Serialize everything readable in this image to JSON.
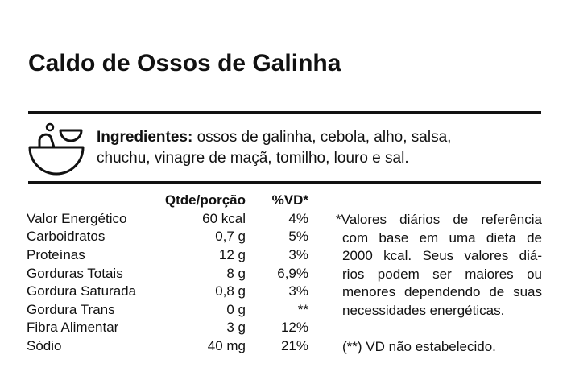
{
  "title": "Caldo de Ossos de Galinha",
  "ingredients": {
    "label": "Ingredientes:",
    "text": "ossos de galinha, cebola, alho, salsa, chuchu, vinagre de maçã, tomilho, louro e sal."
  },
  "table": {
    "header": [
      "Qtde/porção",
      "%VD*"
    ],
    "rows": [
      [
        "Valor Energético",
        "60 kcal",
        "4%"
      ],
      [
        "Carboidratos",
        "0,7 g",
        "5%"
      ],
      [
        "Proteínas",
        "12 g",
        "3%"
      ],
      [
        "Gorduras Totais",
        "8 g",
        "6,9%"
      ],
      [
        "Gordura Saturada",
        "0,8 g",
        "3%"
      ],
      [
        "Gordura Trans",
        "0 g",
        "**"
      ],
      [
        "Fibra Alimentar",
        "3 g",
        "12%"
      ],
      [
        "Sódio",
        "40 mg",
        "21%"
      ]
    ]
  },
  "footnote": {
    "lines": [
      "*Valores diários de referência",
      "com base em uma dieta de",
      "2000 kcal. Seus valores diá-",
      "rios podem ser maiores ou",
      "menores dependendo de suas",
      "necessidades energéticas."
    ],
    "note": "(**) VD não estabelecido."
  }
}
